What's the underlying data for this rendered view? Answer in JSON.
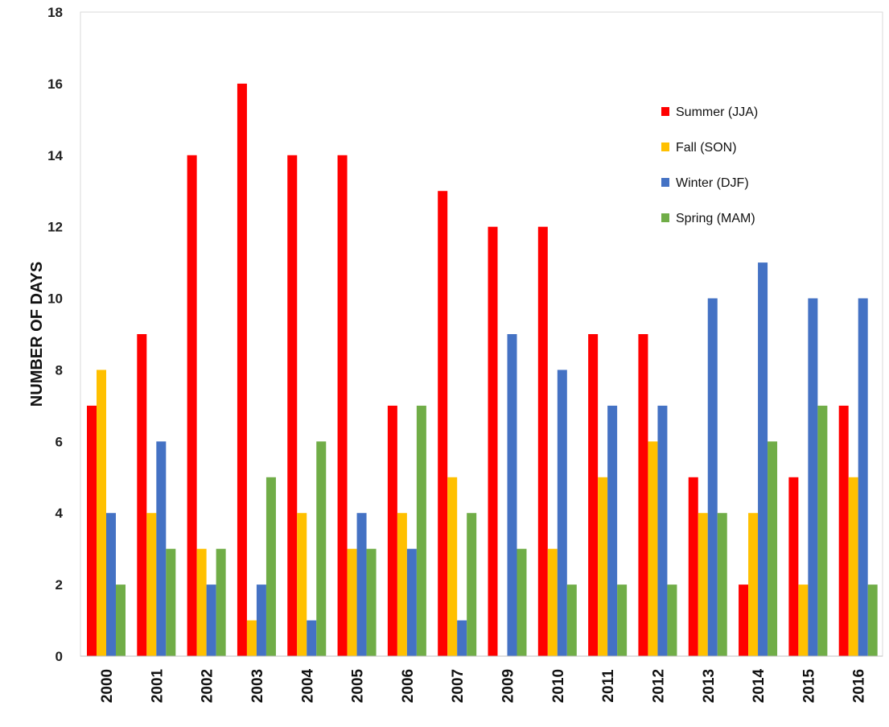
{
  "chart_data": {
    "type": "bar",
    "ylabel": "NUMBER OF DAYS",
    "xlabel": "",
    "title": "",
    "ylim": [
      0,
      18
    ],
    "yticks": [
      0,
      2,
      4,
      6,
      8,
      10,
      12,
      14,
      16,
      18
    ],
    "grid": false,
    "legend_position": "top-right",
    "categories": [
      "2000",
      "2001",
      "2002",
      "2003",
      "2004",
      "2005",
      "2006",
      "2007",
      "2009",
      "2010",
      "2011",
      "2012",
      "2013",
      "2014",
      "2015",
      "2016"
    ],
    "series": [
      {
        "name": "Summer (JJA)",
        "color": "#ff0000",
        "values": [
          7,
          9,
          14,
          16,
          14,
          14,
          7,
          13,
          12,
          12,
          9,
          9,
          5,
          2,
          5,
          7
        ]
      },
      {
        "name": "Fall (SON)",
        "color": "#ffc000",
        "values": [
          8,
          4,
          3,
          1,
          4,
          3,
          4,
          5,
          0,
          3,
          5,
          6,
          4,
          4,
          2,
          5
        ]
      },
      {
        "name": "Winter (DJF)",
        "color": "#4472c4",
        "values": [
          4,
          6,
          2,
          2,
          1,
          4,
          3,
          1,
          9,
          8,
          7,
          7,
          10,
          11,
          10,
          10
        ]
      },
      {
        "name": "Spring (MAM)",
        "color": "#70ad47",
        "values": [
          2,
          3,
          3,
          5,
          6,
          3,
          7,
          4,
          3,
          2,
          2,
          2,
          4,
          6,
          7,
          2
        ]
      }
    ]
  }
}
